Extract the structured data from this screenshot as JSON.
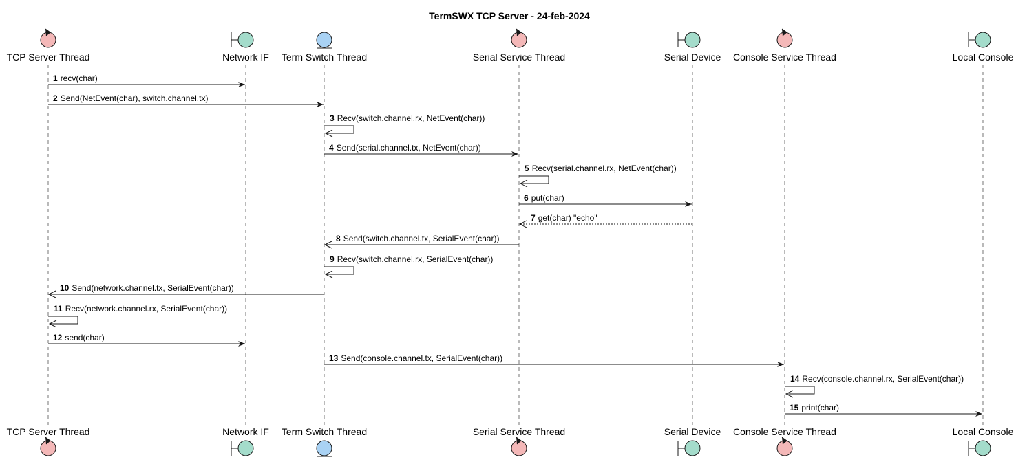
{
  "title": "TermSWX TCP Server - 24-feb-2024",
  "colors": {
    "control": "#F4B8B8",
    "boundary": "#A4DCCB",
    "entity": "#A9D2F4",
    "stroke": "#181818"
  },
  "participants": [
    {
      "id": "tcp",
      "name": "TCP Server Thread",
      "kind": "control",
      "icon": "control-icon"
    },
    {
      "id": "net",
      "name": "Network IF",
      "kind": "boundary",
      "icon": "boundary-icon"
    },
    {
      "id": "sw",
      "name": "Term Switch Thread",
      "kind": "entity",
      "icon": "entity-icon"
    },
    {
      "id": "ser",
      "name": "Serial Service Thread",
      "kind": "control",
      "icon": "control-icon"
    },
    {
      "id": "dev",
      "name": "Serial Device",
      "kind": "boundary",
      "icon": "boundary-icon"
    },
    {
      "id": "con",
      "name": "Console Service Thread",
      "kind": "control",
      "icon": "control-icon"
    },
    {
      "id": "loc",
      "name": "Local Console",
      "kind": "boundary",
      "icon": "boundary-icon"
    }
  ],
  "messages": [
    {
      "num": "1",
      "from": "tcp",
      "to": "net",
      "text": "recv(char)"
    },
    {
      "num": "2",
      "from": "tcp",
      "to": "sw",
      "text": "Send(NetEvent(char), switch.channel.tx)"
    },
    {
      "num": "3",
      "from": "sw",
      "to": "sw",
      "text": "Recv(switch.channel.rx, NetEvent(char))"
    },
    {
      "num": "4",
      "from": "sw",
      "to": "ser",
      "text": "Send(serial.channel.tx, NetEvent(char))"
    },
    {
      "num": "5",
      "from": "ser",
      "to": "ser",
      "text": "Recv(serial.channel.rx, NetEvent(char))"
    },
    {
      "num": "6",
      "from": "ser",
      "to": "dev",
      "text": "put(char)"
    },
    {
      "num": "7",
      "from": "dev",
      "to": "ser",
      "text": "get(char) \"echo\"",
      "dashed": true
    },
    {
      "num": "8",
      "from": "ser",
      "to": "sw",
      "text": "Send(switch.channel.tx, SerialEvent(char))"
    },
    {
      "num": "9",
      "from": "sw",
      "to": "sw",
      "text": "Recv(switch.channel.rx, SerialEvent(char))"
    },
    {
      "num": "10",
      "from": "sw",
      "to": "tcp",
      "text": "Send(network.channel.tx, SerialEvent(char))"
    },
    {
      "num": "11",
      "from": "tcp",
      "to": "tcp",
      "text": "Recv(network.channel.rx, SerialEvent(char))"
    },
    {
      "num": "12",
      "from": "tcp",
      "to": "net",
      "text": "send(char)"
    },
    {
      "num": "13",
      "from": "sw",
      "to": "con",
      "text": "Send(console.channel.tx, SerialEvent(char))"
    },
    {
      "num": "14",
      "from": "con",
      "to": "con",
      "text": "Recv(console.channel.rx, SerialEvent(char))"
    },
    {
      "num": "15",
      "from": "con",
      "to": "loc",
      "text": "print(char)"
    }
  ]
}
